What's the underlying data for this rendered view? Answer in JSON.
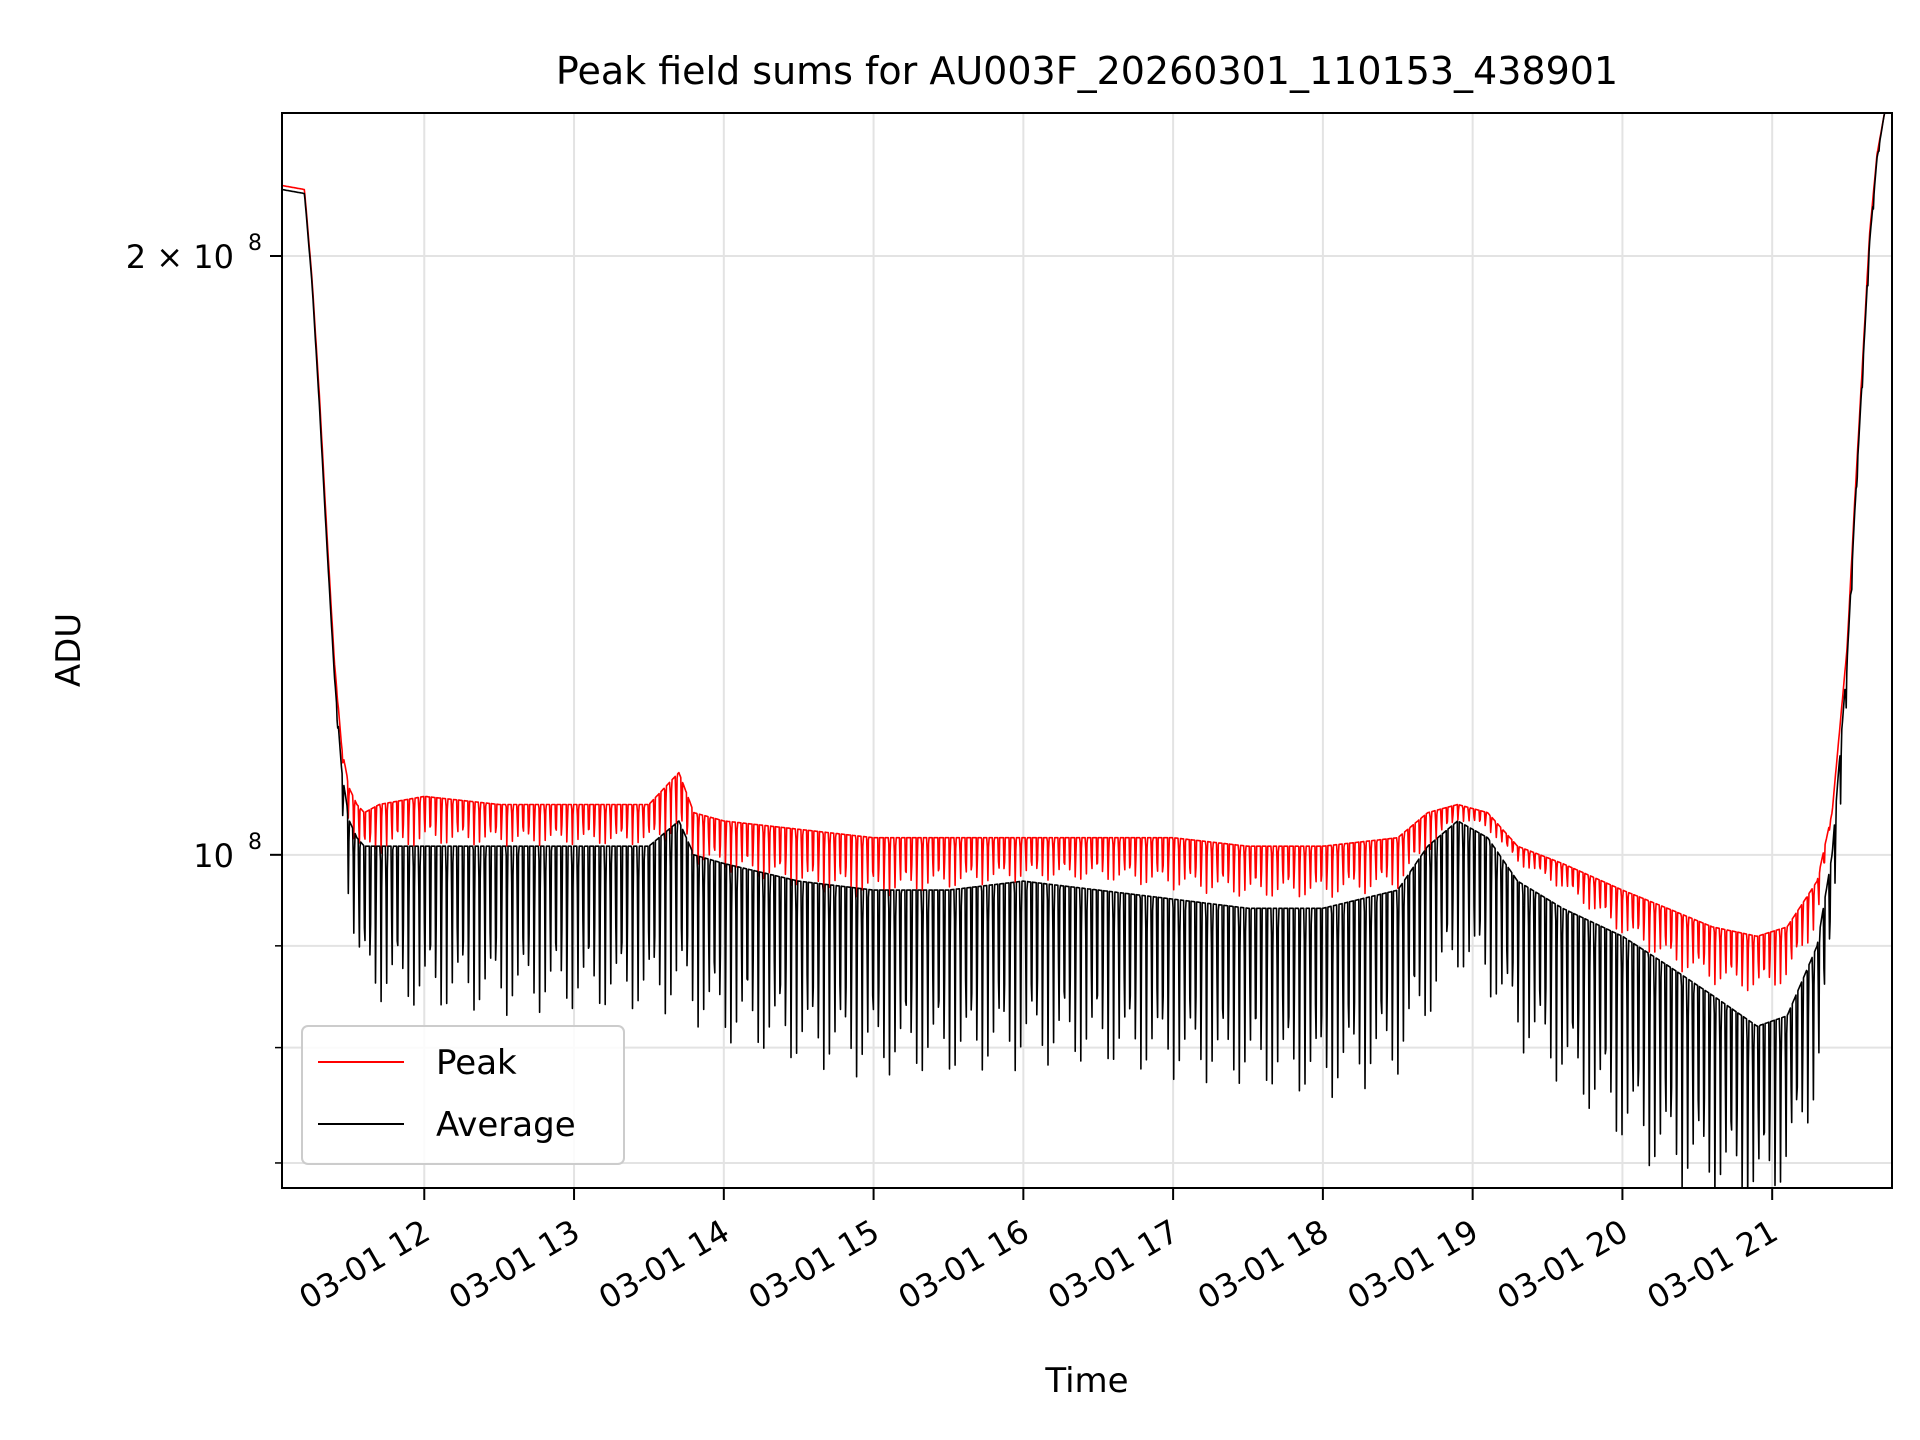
{
  "chart_data": {
    "type": "line",
    "title": "Peak field sums for AU003F_20260301_110153_438901",
    "xlabel": "Time",
    "ylabel": "ADU",
    "yscale": "log",
    "ylim": [
      68000000,
      236000000
    ],
    "xlim_hours": [
      11.05,
      21.8
    ],
    "x_ticks": [
      {
        "hour": 12,
        "label": "03-01 12"
      },
      {
        "hour": 13,
        "label": "03-01 13"
      },
      {
        "hour": 14,
        "label": "03-01 14"
      },
      {
        "hour": 15,
        "label": "03-01 15"
      },
      {
        "hour": 16,
        "label": "03-01 16"
      },
      {
        "hour": 17,
        "label": "03-01 17"
      },
      {
        "hour": 18,
        "label": "03-01 18"
      },
      {
        "hour": 19,
        "label": "03-01 19"
      },
      {
        "hour": 20,
        "label": "03-01 20"
      },
      {
        "hour": 21,
        "label": "03-01 21"
      }
    ],
    "y_major_ticks": [
      {
        "value": 100000000,
        "label": "10",
        "exp": "8"
      },
      {
        "value": 200000000,
        "label": "2 × 10",
        "exp": "8"
      }
    ],
    "y_minor_ticks": [
      70000000,
      80000000,
      90000000
    ],
    "grid": true,
    "legend": {
      "position": "lower-left",
      "entries": [
        "Peak",
        "Average"
      ]
    },
    "series": [
      {
        "name": "Peak",
        "color": "#ff0000",
        "envelope_hours": [
          11.05,
          11.2,
          11.25,
          11.3,
          11.35,
          11.4,
          11.45,
          11.5,
          11.55,
          11.6,
          11.7,
          12.0,
          12.5,
          13.0,
          13.5,
          13.7,
          13.8,
          14.0,
          14.5,
          15.0,
          15.5,
          16.0,
          16.5,
          17.0,
          17.5,
          18.0,
          18.5,
          18.7,
          18.9,
          19.1,
          19.3,
          19.6,
          20.0,
          20.3,
          20.6,
          20.9,
          21.1,
          21.3,
          21.4,
          21.5,
          21.55,
          21.6,
          21.65,
          21.7,
          21.75,
          21.8
        ],
        "top_values": [
          217000000,
          216000000,
          195000000,
          170000000,
          145000000,
          125000000,
          113000000,
          108000000,
          106000000,
          105000000,
          106000000,
          107000000,
          106000000,
          106000000,
          106000000,
          110000000,
          105000000,
          104000000,
          103000000,
          102000000,
          102000000,
          102000000,
          102000000,
          102000000,
          101000000,
          101000000,
          102000000,
          105000000,
          106000000,
          105000000,
          101000000,
          99000000,
          96000000,
          94000000,
          92000000,
          91000000,
          92000000,
          97000000,
          105000000,
          127000000,
          150000000,
          175000000,
          205000000,
          225000000,
          236000000,
          236000000
        ],
        "trough_values": [
          217000000,
          216000000,
          195000000,
          170000000,
          145000000,
          125000000,
          112000000,
          103000000,
          100000000,
          100000000,
          100000000,
          101000000,
          101000000,
          101000000,
          101000000,
          102000000,
          99000000,
          98000000,
          96000000,
          95000000,
          96000000,
          97000000,
          97000000,
          96000000,
          95000000,
          95000000,
          96000000,
          100000000,
          104000000,
          103000000,
          99000000,
          96000000,
          91000000,
          88000000,
          86000000,
          85000000,
          86000000,
          92000000,
          105000000,
          127000000,
          150000000,
          175000000,
          205000000,
          225000000,
          236000000,
          236000000
        ]
      },
      {
        "name": "Average",
        "color": "#000000",
        "envelope_hours": [
          11.05,
          11.2,
          11.25,
          11.3,
          11.35,
          11.4,
          11.45,
          11.5,
          11.55,
          11.6,
          11.7,
          12.0,
          12.5,
          13.0,
          13.5,
          13.7,
          13.8,
          14.0,
          14.5,
          15.0,
          15.5,
          16.0,
          16.5,
          17.0,
          17.5,
          18.0,
          18.5,
          18.7,
          18.9,
          19.1,
          19.3,
          19.6,
          20.0,
          20.3,
          20.6,
          20.9,
          21.1,
          21.3,
          21.4,
          21.5,
          21.55,
          21.6,
          21.65,
          21.7,
          21.75,
          21.8
        ],
        "top_values": [
          216000000,
          215000000,
          194000000,
          168000000,
          143000000,
          123000000,
          110000000,
          104000000,
          102000000,
          101000000,
          101000000,
          101000000,
          101000000,
          101000000,
          101000000,
          104000000,
          100000000,
          99000000,
          97000000,
          96000000,
          96000000,
          97000000,
          96000000,
          95000000,
          94000000,
          94000000,
          96000000,
          101000000,
          104000000,
          102000000,
          97000000,
          94000000,
          91000000,
          88000000,
          85000000,
          82000000,
          83000000,
          90000000,
          100000000,
          125000000,
          148000000,
          173000000,
          203000000,
          224000000,
          236000000,
          236000000
        ],
        "trough_values": [
          216000000,
          215000000,
          194000000,
          168000000,
          143000000,
          123000000,
          105000000,
          94000000,
          87000000,
          85000000,
          84000000,
          83000000,
          83000000,
          83000000,
          83000000,
          83000000,
          82000000,
          80000000,
          78000000,
          77000000,
          77000000,
          78000000,
          78000000,
          77000000,
          76000000,
          75000000,
          77000000,
          82000000,
          87000000,
          85000000,
          80000000,
          76000000,
          71000000,
          68000000,
          67000000,
          66000000,
          68000000,
          75000000,
          90000000,
          120000000,
          145000000,
          170000000,
          200000000,
          222000000,
          236000000,
          236000000
        ]
      }
    ]
  }
}
